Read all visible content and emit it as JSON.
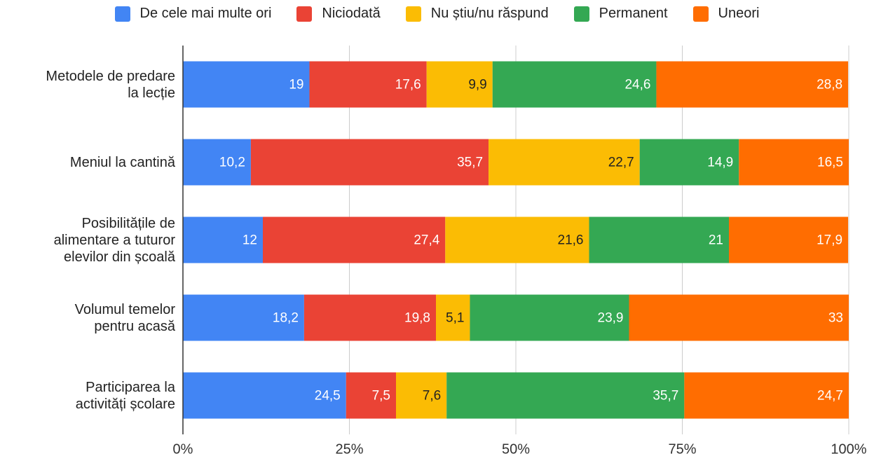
{
  "chart_data": {
    "type": "stacked_bar_horizontal",
    "categories": [
      "Metodele de predare la lecție",
      "Meniul la cantină",
      "Posibilitățile de alimentare a tuturor elevilor din școală",
      "Volumul temelor pentru acasă",
      "Participarea la activități școlare"
    ],
    "series": [
      {
        "name": "De cele mai multe ori",
        "color": "#4285f4",
        "values": [
          19,
          10.2,
          12,
          18.2,
          24.5
        ],
        "value_labels": [
          "19",
          "10,2",
          "12",
          "18,2",
          "24,5"
        ]
      },
      {
        "name": "Niciodată",
        "color": "#ea4335",
        "values": [
          17.6,
          35.7,
          27.4,
          19.8,
          7.5
        ],
        "value_labels": [
          "17,6",
          "35,7",
          "27,4",
          "19,8",
          "7,5"
        ]
      },
      {
        "name": "Nu știu/nu răspund",
        "color": "#fbbc04",
        "values": [
          9.9,
          22.7,
          21.6,
          5.1,
          7.6
        ],
        "value_labels": [
          "9,9",
          "22,7",
          "21,6",
          "5,1",
          "7,6"
        ]
      },
      {
        "name": "Permanent",
        "color": "#34a853",
        "values": [
          24.6,
          14.9,
          21,
          23.9,
          35.7
        ],
        "value_labels": [
          "24,6",
          "14,9",
          "21",
          "23,9",
          "35,7"
        ]
      },
      {
        "name": "Uneori",
        "color": "#ff6d01",
        "values": [
          28.8,
          16.5,
          17.9,
          33,
          24.7
        ],
        "value_labels": [
          "28,8",
          "16,5",
          "17,9",
          "33",
          "24,7"
        ]
      }
    ],
    "xlim": [
      0,
      100
    ],
    "xticks": [
      {
        "value": 0,
        "label": "0%"
      },
      {
        "value": 25,
        "label": "25%"
      },
      {
        "value": 50,
        "label": "50%"
      },
      {
        "value": 75,
        "label": "75%"
      },
      {
        "value": 100,
        "label": "100%"
      }
    ],
    "grid": true,
    "legend": "top"
  }
}
